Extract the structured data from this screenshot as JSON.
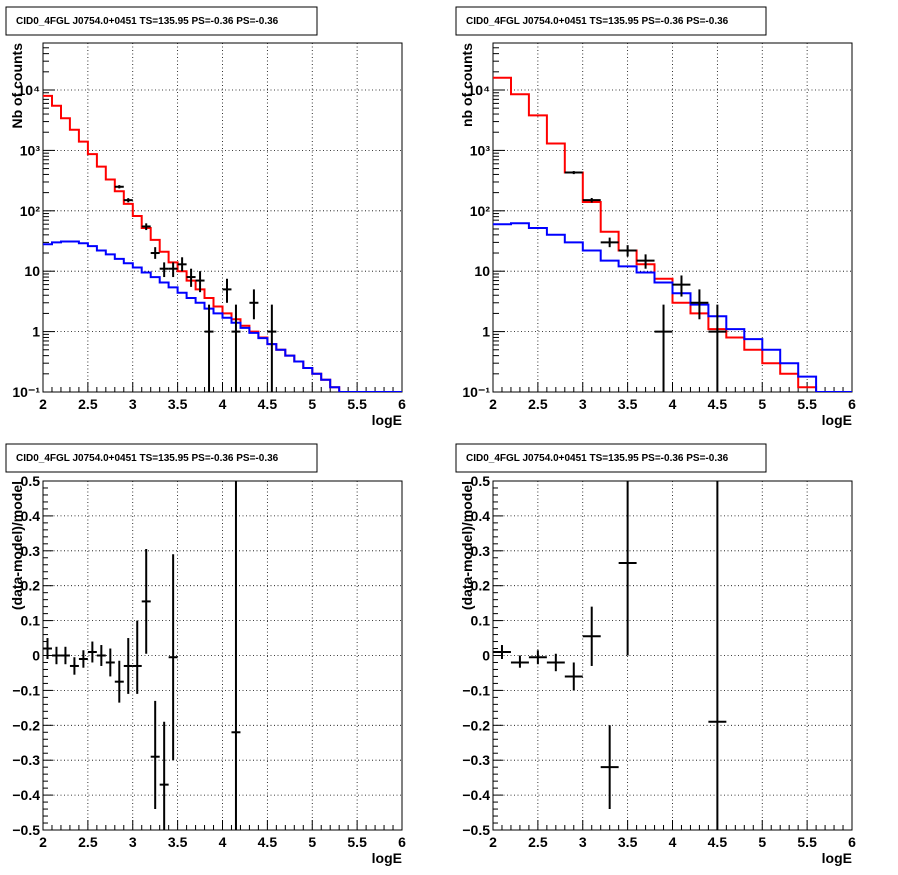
{
  "chart_data": [
    {
      "type": "line",
      "title": "CID0_4FGL J0754.0+0451 TS=135.95 PS=-0.36 PS=-0.36",
      "xlabel": "logE",
      "ylabel": "Nb of counts",
      "xlim": [
        2,
        6
      ],
      "ylim": [
        0.1,
        60000
      ],
      "yscale": "log",
      "grid": true,
      "x_ticks": [
        2,
        2.5,
        3,
        3.5,
        4,
        4.5,
        5,
        5.5,
        6
      ],
      "x_tick_labels": [
        "2",
        "2.5",
        "3",
        "3.5",
        "4",
        "4.5",
        "5",
        "5.5",
        "6"
      ],
      "y_ticks": [
        0.1,
        1,
        10,
        100,
        1000,
        10000
      ],
      "y_tick_labels": [
        "10⁻¹",
        "1",
        "10",
        "10²",
        "10³",
        "10⁴"
      ],
      "bin_edges": [
        2.0,
        2.1,
        2.2,
        2.3,
        2.4,
        2.5,
        2.6,
        2.7,
        2.8,
        2.9,
        3.0,
        3.1,
        3.2,
        3.3,
        3.4,
        3.5,
        3.6,
        3.7,
        3.8,
        3.9,
        4.0,
        4.1,
        4.2,
        4.3,
        4.4,
        4.5,
        4.6,
        4.7,
        4.8,
        4.9,
        5.0,
        5.1,
        5.2,
        5.3,
        5.4,
        5.5,
        5.6,
        5.7,
        5.8,
        5.9,
        6.0
      ],
      "series": [
        {
          "color": "#ff0000",
          "values": [
            8000,
            5500,
            3400,
            2200,
            1400,
            870,
            540,
            330,
            210,
            130,
            82,
            52,
            33,
            21,
            14,
            10,
            7,
            5,
            3.6,
            2.6,
            2.0,
            1.6,
            1.25,
            1.0,
            0.8,
            0.62,
            0.5,
            0.4,
            0.32,
            0.25,
            0.2,
            0.16,
            0.12,
            0.1,
            0.1,
            0.1,
            0.1,
            0.1,
            0.1,
            0.1
          ]
        },
        {
          "color": "#0000ff",
          "values": [
            28,
            30,
            31,
            31,
            29,
            26,
            22,
            19,
            16,
            13.5,
            11.5,
            9.5,
            8,
            6.5,
            5.4,
            4.4,
            3.6,
            3.0,
            2.4,
            2.0,
            1.7,
            1.4,
            1.15,
            0.95,
            0.78,
            0.62,
            0.5,
            0.4,
            0.32,
            0.25,
            0.2,
            0.16,
            0.12,
            0.1,
            0.1,
            0.1,
            0.1,
            0.1,
            0.1,
            0.1
          ]
        }
      ],
      "points": [
        {
          "x": 2.85,
          "y": 250,
          "xerr": 0.05,
          "ylo": 235,
          "yhi": 266
        },
        {
          "x": 2.95,
          "y": 150,
          "xerr": 0.05,
          "ylo": 138,
          "yhi": 162
        },
        {
          "x": 3.15,
          "y": 55,
          "xerr": 0.05,
          "ylo": 48,
          "yhi": 62
        },
        {
          "x": 3.25,
          "y": 20,
          "xerr": 0.05,
          "ylo": 16,
          "yhi": 25
        },
        {
          "x": 3.35,
          "y": 11,
          "xerr": 0.05,
          "ylo": 8,
          "yhi": 14
        },
        {
          "x": 3.45,
          "y": 11,
          "xerr": 0.05,
          "ylo": 8,
          "yhi": 14
        },
        {
          "x": 3.55,
          "y": 13,
          "xerr": 0.05,
          "ylo": 10,
          "yhi": 17
        },
        {
          "x": 3.65,
          "y": 8,
          "xerr": 0.05,
          "ylo": 5.5,
          "yhi": 11
        },
        {
          "x": 3.75,
          "y": 7,
          "xerr": 0.05,
          "ylo": 4.5,
          "yhi": 10
        },
        {
          "x": 3.85,
          "y": 1,
          "xerr": 0.05,
          "ylo": 0.1,
          "yhi": 2.8
        },
        {
          "x": 4.05,
          "y": 5,
          "xerr": 0.05,
          "ylo": 3,
          "yhi": 7.5
        },
        {
          "x": 4.15,
          "y": 1,
          "xerr": 0.05,
          "ylo": 0.1,
          "yhi": 2.8
        },
        {
          "x": 4.35,
          "y": 3,
          "xerr": 0.05,
          "ylo": 1.6,
          "yhi": 5
        },
        {
          "x": 4.55,
          "y": 1,
          "xerr": 0.05,
          "ylo": 0.1,
          "yhi": 2.8
        }
      ]
    },
    {
      "type": "line",
      "title": "CID0_4FGL J0754.0+0451 TS=135.95 PS=-0.36 PS=-0.36",
      "xlabel": "logE",
      "ylabel": "nb of counts",
      "xlim": [
        2,
        6
      ],
      "ylim": [
        0.1,
        60000
      ],
      "yscale": "log",
      "grid": true,
      "x_ticks": [
        2,
        2.5,
        3,
        3.5,
        4,
        4.5,
        5,
        5.5,
        6
      ],
      "x_tick_labels": [
        "2",
        "2.5",
        "3",
        "3.5",
        "4",
        "4.5",
        "5",
        "5.5",
        "6"
      ],
      "y_ticks": [
        0.1,
        1,
        10,
        100,
        1000,
        10000
      ],
      "y_tick_labels": [
        "10⁻¹",
        "1",
        "10",
        "10²",
        "10³",
        "10⁴"
      ],
      "bin_edges": [
        2.0,
        2.2,
        2.4,
        2.6,
        2.8,
        3.0,
        3.2,
        3.4,
        3.6,
        3.8,
        4.0,
        4.2,
        4.4,
        4.6,
        4.8,
        5.0,
        5.2,
        5.4,
        5.6,
        5.8,
        6.0
      ],
      "series": [
        {
          "color": "#ff0000",
          "values": [
            16000,
            8500,
            3800,
            1300,
            430,
            140,
            45,
            22,
            13,
            7.5,
            3.0,
            2.0,
            1.1,
            0.8,
            0.5,
            0.3,
            0.2,
            0.12,
            0.1,
            0.1
          ]
        },
        {
          "color": "#0000ff",
          "values": [
            60,
            62,
            52,
            40,
            30,
            22,
            15,
            12,
            9.5,
            6.5,
            4.3,
            2.8,
            1.8,
            1.1,
            0.75,
            0.5,
            0.3,
            0.18,
            0.1,
            0.1
          ]
        }
      ],
      "points": [
        {
          "x": 2.9,
          "y": 430,
          "xerr": 0.1,
          "ylo": 405,
          "yhi": 455
        },
        {
          "x": 3.1,
          "y": 150,
          "xerr": 0.1,
          "ylo": 137,
          "yhi": 163
        },
        {
          "x": 3.3,
          "y": 30,
          "xerr": 0.1,
          "ylo": 25,
          "yhi": 36
        },
        {
          "x": 3.5,
          "y": 22,
          "xerr": 0.1,
          "ylo": 17.5,
          "yhi": 27
        },
        {
          "x": 3.7,
          "y": 15,
          "xerr": 0.1,
          "ylo": 11,
          "yhi": 19
        },
        {
          "x": 3.9,
          "y": 1,
          "xerr": 0.1,
          "ylo": 0.1,
          "yhi": 2.8
        },
        {
          "x": 4.1,
          "y": 6,
          "xerr": 0.1,
          "ylo": 3.8,
          "yhi": 8.5
        },
        {
          "x": 4.3,
          "y": 3,
          "xerr": 0.1,
          "ylo": 1.6,
          "yhi": 5
        },
        {
          "x": 4.5,
          "y": 1,
          "xerr": 0.1,
          "ylo": 0.1,
          "yhi": 2.8
        }
      ]
    },
    {
      "type": "scatter",
      "title": "CID0_4FGL J0754.0+0451 TS=135.95 PS=-0.36 PS=-0.36",
      "xlabel": "logE",
      "ylabel": "(data-model)/model",
      "xlim": [
        2,
        6
      ],
      "ylim": [
        -0.5,
        0.5
      ],
      "yscale": "linear",
      "grid": true,
      "x_ticks": [
        2,
        2.5,
        3,
        3.5,
        4,
        4.5,
        5,
        5.5,
        6
      ],
      "x_tick_labels": [
        "2",
        "2.5",
        "3",
        "3.5",
        "4",
        "4.5",
        "5",
        "5.5",
        "6"
      ],
      "y_ticks": [
        -0.5,
        -0.4,
        -0.3,
        -0.2,
        -0.1,
        0,
        0.1,
        0.2,
        0.3,
        0.4,
        0.5
      ],
      "y_tick_labels": [
        "−0.5",
        "−0.4",
        "−0.3",
        "−0.2",
        "−0.1",
        "0",
        "0.1",
        "0.2",
        "0.3",
        "0.4",
        "0.5"
      ],
      "points": [
        {
          "x": 2.05,
          "y": 0.02,
          "xerr": 0.05,
          "ylo": -0.01,
          "yhi": 0.05
        },
        {
          "x": 2.15,
          "y": 0.0,
          "xerr": 0.05,
          "ylo": -0.025,
          "yhi": 0.025
        },
        {
          "x": 2.25,
          "y": 0.0,
          "xerr": 0.05,
          "ylo": -0.025,
          "yhi": 0.025
        },
        {
          "x": 2.35,
          "y": -0.03,
          "xerr": 0.05,
          "ylo": -0.055,
          "yhi": -0.005
        },
        {
          "x": 2.45,
          "y": -0.01,
          "xerr": 0.05,
          "ylo": -0.035,
          "yhi": 0.015
        },
        {
          "x": 2.55,
          "y": 0.01,
          "xerr": 0.05,
          "ylo": -0.02,
          "yhi": 0.04
        },
        {
          "x": 2.65,
          "y": 0.0,
          "xerr": 0.05,
          "ylo": -0.03,
          "yhi": 0.03
        },
        {
          "x": 2.75,
          "y": -0.02,
          "xerr": 0.05,
          "ylo": -0.06,
          "yhi": 0.02
        },
        {
          "x": 2.85,
          "y": -0.075,
          "xerr": 0.05,
          "ylo": -0.135,
          "yhi": -0.015
        },
        {
          "x": 2.95,
          "y": -0.03,
          "xerr": 0.05,
          "ylo": -0.11,
          "yhi": 0.05
        },
        {
          "x": 3.05,
          "y": -0.03,
          "xerr": 0.05,
          "ylo": -0.11,
          "yhi": 0.1
        },
        {
          "x": 3.15,
          "y": 0.155,
          "xerr": 0.05,
          "ylo": 0.005,
          "yhi": 0.305
        },
        {
          "x": 3.25,
          "y": -0.29,
          "xerr": 0.05,
          "ylo": -0.44,
          "yhi": -0.13
        },
        {
          "x": 3.35,
          "y": -0.37,
          "xerr": 0.05,
          "ylo": -0.5,
          "yhi": -0.19
        },
        {
          "x": 3.45,
          "y": -0.005,
          "xerr": 0.05,
          "ylo": -0.3,
          "yhi": 0.29
        },
        {
          "x": 4.15,
          "y": -0.22,
          "xerr": 0.05,
          "ylo": -0.5,
          "yhi": 0.5
        }
      ]
    },
    {
      "type": "scatter",
      "title": "CID0_4FGL J0754.0+0451 TS=135.95 PS=-0.36 PS=-0.36",
      "xlabel": "logE",
      "ylabel": "(data-model)/model",
      "xlim": [
        2,
        6
      ],
      "ylim": [
        -0.5,
        0.5
      ],
      "yscale": "linear",
      "grid": true,
      "x_ticks": [
        2,
        2.5,
        3,
        3.5,
        4,
        4.5,
        5,
        5.5,
        6
      ],
      "x_tick_labels": [
        "2",
        "2.5",
        "3",
        "3.5",
        "4",
        "4.5",
        "5",
        "5.5",
        "6"
      ],
      "y_ticks": [
        -0.5,
        -0.4,
        -0.3,
        -0.2,
        -0.1,
        0,
        0.1,
        0.2,
        0.3,
        0.4,
        0.5
      ],
      "y_tick_labels": [
        "−0.5",
        "−0.4",
        "−0.3",
        "−0.2",
        "−0.1",
        "0",
        "0.1",
        "0.2",
        "0.3",
        "0.4",
        "0.5"
      ],
      "points": [
        {
          "x": 2.1,
          "y": 0.01,
          "xerr": 0.1,
          "ylo": -0.01,
          "yhi": 0.03
        },
        {
          "x": 2.3,
          "y": -0.02,
          "xerr": 0.1,
          "ylo": -0.035,
          "yhi": 0.0
        },
        {
          "x": 2.5,
          "y": -0.005,
          "xerr": 0.1,
          "ylo": -0.025,
          "yhi": 0.015
        },
        {
          "x": 2.7,
          "y": -0.02,
          "xerr": 0.1,
          "ylo": -0.045,
          "yhi": 0.005
        },
        {
          "x": 2.9,
          "y": -0.06,
          "xerr": 0.1,
          "ylo": -0.1,
          "yhi": -0.02
        },
        {
          "x": 3.1,
          "y": 0.055,
          "xerr": 0.1,
          "ylo": -0.03,
          "yhi": 0.14
        },
        {
          "x": 3.3,
          "y": -0.32,
          "xerr": 0.1,
          "ylo": -0.44,
          "yhi": -0.2
        },
        {
          "x": 3.5,
          "y": 0.265,
          "xerr": 0.1,
          "ylo": 0.0,
          "yhi": 0.5
        },
        {
          "x": 4.5,
          "y": -0.19,
          "xerr": 0.1,
          "ylo": -0.5,
          "yhi": 0.5
        }
      ]
    }
  ]
}
